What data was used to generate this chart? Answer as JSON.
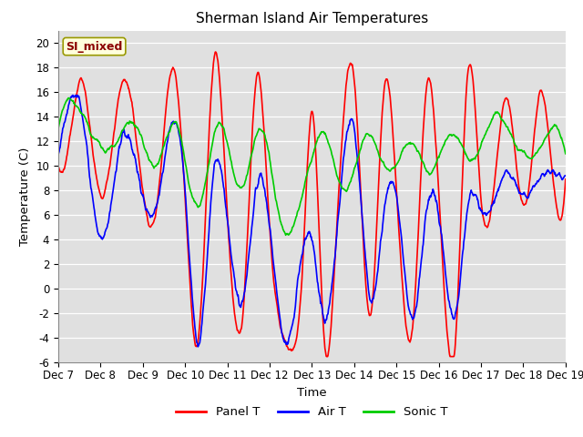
{
  "title": "Sherman Island Air Temperatures",
  "xlabel": "Time",
  "ylabel": "Temperature (C)",
  "xlim_days": [
    7,
    19
  ],
  "ylim": [
    -6,
    21
  ],
  "yticks": [
    -6,
    -4,
    -2,
    0,
    2,
    4,
    6,
    8,
    10,
    12,
    14,
    16,
    18,
    20
  ],
  "xtick_labels": [
    "Dec 7",
    "Dec 8",
    "Dec 9",
    "Dec 10",
    "Dec 11",
    "Dec 12",
    "Dec 13",
    "Dec 14",
    "Dec 15",
    "Dec 16",
    "Dec 17",
    "Dec 18",
    "Dec 19"
  ],
  "annotation_text": "SI_mixed",
  "annotation_color": "#8B0000",
  "annotation_bg": "#FFFFDD",
  "line_colors": {
    "panel": "#FF0000",
    "air": "#0000FF",
    "sonic": "#00CC00"
  },
  "line_widths": {
    "panel": 1.2,
    "air": 1.2,
    "sonic": 1.2
  },
  "legend_labels": [
    "Panel T",
    "Air T",
    "Sonic T"
  ],
  "plot_bg_color": "#E0E0E0",
  "grid_color": "#FFFFFF",
  "figsize": [
    6.4,
    4.8
  ],
  "dpi": 100
}
